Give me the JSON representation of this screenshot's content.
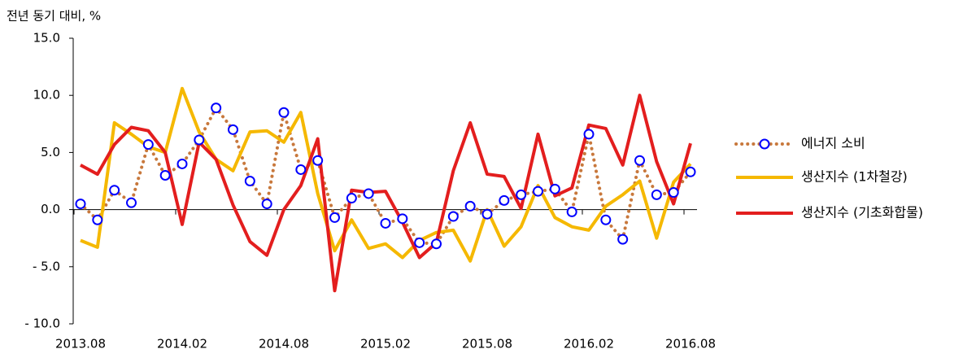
{
  "chart_data": {
    "type": "line",
    "y_label": "전년 동기 대비, %",
    "categories": [
      "2013.08",
      null,
      null,
      null,
      null,
      null,
      "2014.02",
      null,
      null,
      null,
      null,
      null,
      "2014.08",
      null,
      null,
      null,
      null,
      null,
      "2015.02",
      null,
      null,
      null,
      null,
      null,
      "2015.08",
      null,
      null,
      null,
      null,
      null,
      "2016.02",
      null,
      null,
      null,
      null,
      null,
      "2016.08"
    ],
    "ylim": [
      -10,
      15
    ],
    "yticks": [
      {
        "value": -10,
        "label": "- 10.0"
      },
      {
        "value": -5,
        "label": "- 5.0"
      },
      {
        "value": 0,
        "label": "0.0"
      },
      {
        "value": 5,
        "label": "5.0"
      },
      {
        "value": 10,
        "label": "10.0"
      },
      {
        "value": 15,
        "label": "15.0"
      }
    ],
    "legend": "right",
    "series": [
      {
        "name": "에너지 소비",
        "color": "#c8783c",
        "line_style": "dotted",
        "marker": "circle",
        "marker_color": "#0000ff",
        "values": [
          0.5,
          -0.9,
          1.7,
          0.6,
          5.7,
          3.0,
          4.0,
          6.1,
          8.9,
          7.0,
          2.5,
          0.5,
          8.5,
          3.5,
          4.3,
          -0.7,
          1.0,
          1.4,
          -1.2,
          -0.8,
          -2.9,
          -3.0,
          -0.6,
          0.3,
          -0.4,
          0.8,
          1.3,
          1.6,
          1.8,
          -0.2,
          6.6,
          -0.9,
          -2.6,
          4.3,
          1.3,
          1.5,
          3.3
        ]
      },
      {
        "name": "생산지수 (1차철강)",
        "color": "#f5b800",
        "line_style": "solid",
        "values": [
          -2.7,
          -3.3,
          7.6,
          6.6,
          5.5,
          5.0,
          10.6,
          6.8,
          4.4,
          3.4,
          6.8,
          6.9,
          5.9,
          8.5,
          1.4,
          -3.6,
          -0.9,
          -3.4,
          -3.0,
          -4.2,
          -2.7,
          -2.0,
          -1.8,
          -4.5,
          0.0,
          -3.2,
          -1.5,
          2.1,
          -0.7,
          -1.5,
          -1.8,
          0.3,
          1.3,
          2.5,
          -2.5,
          2.4,
          4.0
        ]
      },
      {
        "name": "생산지수 (기초화합물)",
        "color": "#e31e1e",
        "line_style": "solid",
        "values": [
          3.9,
          3.1,
          5.7,
          7.2,
          6.9,
          5.0,
          -1.3,
          5.9,
          4.4,
          0.4,
          -2.8,
          -4.0,
          0.0,
          2.1,
          6.2,
          -7.1,
          1.7,
          1.5,
          1.6,
          -1.1,
          -4.2,
          -2.9,
          3.4,
          7.6,
          3.1,
          2.9,
          0.1,
          6.6,
          1.2,
          1.9,
          7.4,
          7.1,
          3.9,
          10.0,
          4.2,
          0.5,
          5.8
        ]
      }
    ]
  }
}
